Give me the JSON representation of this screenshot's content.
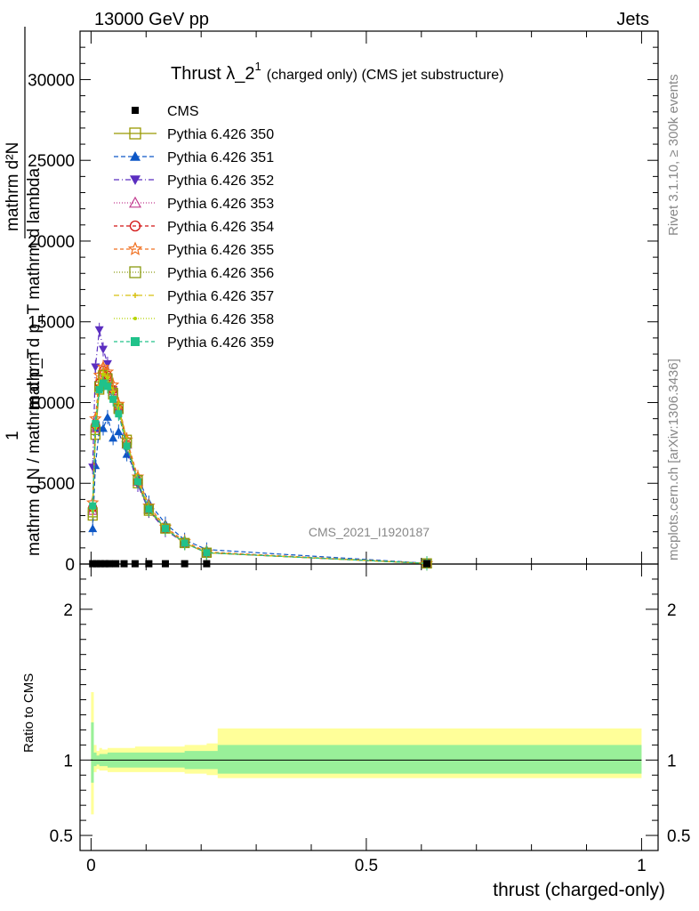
{
  "header": {
    "left": "13000 GeV pp",
    "right": "Jets"
  },
  "side_text": {
    "rivet": "Rivet 3.1.10, ≥ 300k events",
    "mcplots": "mcplots.cern.ch [arXiv:1306.3436]"
  },
  "watermark": "CMS_2021_I1920187",
  "chart_data": {
    "type": "line",
    "title_main": "Thrust λ_2",
    "title_sup": "1",
    "title_sub": "(charged only) (CMS jet substructure)",
    "ylabel_lines": [
      "mathrm d²N",
      "mathrm d p_T mathrm d lambda",
      "1",
      "mathrm d N / mathrm d p_T"
    ],
    "xlabel": "thrust (charged-only)",
    "ratio_ylabel": "Ratio to CMS",
    "xlim": [
      -0.02,
      1.03
    ],
    "ylim": [
      0,
      33000
    ],
    "x_ticks": [
      {
        "value": 0,
        "label": "0"
      },
      {
        "value": 0.5,
        "label": "0.5"
      },
      {
        "value": 1,
        "label": "1"
      }
    ],
    "y_ticks": [
      {
        "value": 0,
        "label": "0"
      },
      {
        "value": 5000,
        "label": "5000"
      },
      {
        "value": 10000,
        "label": "10000"
      },
      {
        "value": 15000,
        "label": "15000"
      },
      {
        "value": 20000,
        "label": "20000"
      },
      {
        "value": 25000,
        "label": "25000"
      },
      {
        "value": 30000,
        "label": "30000"
      }
    ],
    "ratio_ylim": [
      0.4,
      2.3
    ],
    "ratio_ticks": [
      {
        "value": 0.5,
        "label": "0.5"
      },
      {
        "value": 1,
        "label": "1"
      },
      {
        "value": 2,
        "label": "2"
      }
    ],
    "data": {
      "name": "CMS",
      "x": [
        0.003,
        0.01,
        0.017,
        0.025,
        0.033,
        0.045,
        0.06,
        0.08,
        0.105,
        0.135,
        0.17,
        0.21,
        0.61
      ],
      "y": [
        20,
        20,
        20,
        20,
        20,
        20,
        20,
        20,
        20,
        20,
        20,
        20,
        20
      ]
    },
    "x_points": [
      0.003,
      0.008,
      0.015,
      0.022,
      0.03,
      0.04,
      0.05,
      0.065,
      0.085,
      0.105,
      0.135,
      0.17,
      0.21,
      0.61
    ],
    "series": [
      {
        "name": "Pythia 6.426 350",
        "color": "#999900",
        "marker": "open-square",
        "dash": "",
        "values": [
          3000,
          8000,
          10800,
          11500,
          11400,
          10500,
          9700,
          7700,
          5000,
          3300,
          2200,
          1300,
          700,
          40
        ]
      },
      {
        "name": "Pythia 6.426 351",
        "color": "#0d57c6",
        "marker": "filled-triangle-up",
        "dash": "5,3",
        "values": [
          2200,
          6100,
          8400,
          8400,
          9100,
          7800,
          8200,
          6800,
          5400,
          3800,
          2500,
          1500,
          900,
          50
        ]
      },
      {
        "name": "Pythia 6.426 352",
        "color": "#5b2ec0",
        "marker": "filled-triangle-down",
        "dash": "6,3,1,3",
        "values": [
          6000,
          12200,
          14500,
          13300,
          12400,
          10800,
          9400,
          7200,
          4900,
          3300,
          2100,
          1300,
          700,
          40
        ]
      },
      {
        "name": "Pythia 6.426 353",
        "color": "#c23b8f",
        "marker": "open-triangle-up",
        "dash": "1,2",
        "values": [
          3300,
          8400,
          11000,
          11900,
          11600,
          10700,
          9600,
          7400,
          5100,
          3400,
          2200,
          1300,
          700,
          40
        ]
      },
      {
        "name": "Pythia 6.426 354",
        "color": "#d21414",
        "marker": "open-circle",
        "dash": "4,3",
        "values": [
          3500,
          8600,
          11200,
          12000,
          11700,
          10800,
          9600,
          7400,
          5100,
          3400,
          2200,
          1300,
          700,
          40
        ]
      },
      {
        "name": "Pythia 6.426 355",
        "color": "#f07020",
        "marker": "open-star",
        "dash": "4,3",
        "values": [
          3800,
          9000,
          11700,
          12200,
          11900,
          11100,
          9900,
          7700,
          5400,
          3600,
          2300,
          1400,
          750,
          40
        ]
      },
      {
        "name": "Pythia 6.426 356",
        "color": "#8a9a10",
        "marker": "open-square",
        "dash": "1,2",
        "values": [
          3200,
          8300,
          11000,
          11700,
          11500,
          10600,
          9600,
          7500,
          5200,
          3400,
          2200,
          1300,
          700,
          40
        ]
      },
      {
        "name": "Pythia 6.426 357",
        "color": "#d8c010",
        "marker": "small-cross",
        "dash": "6,3,1,3",
        "values": [
          3400,
          8500,
          11100,
          11800,
          11600,
          10700,
          9700,
          7500,
          5200,
          3500,
          2200,
          1300,
          700,
          40
        ]
      },
      {
        "name": "Pythia 6.426 358",
        "color": "#b5d400",
        "marker": "small-dot",
        "dash": "1,2",
        "values": [
          3300,
          8400,
          11000,
          11700,
          11500,
          10600,
          9600,
          7400,
          5100,
          3400,
          2200,
          1300,
          700,
          40
        ]
      },
      {
        "name": "Pythia 6.426 359",
        "color": "#20c28a",
        "marker": "filled-square",
        "dash": "4,3",
        "values": [
          3600,
          8700,
          10800,
          11200,
          11000,
          10200,
          9300,
          7300,
          5100,
          3400,
          2200,
          1300,
          700,
          40
        ]
      }
    ],
    "ratio_bands": {
      "x_edges": [
        0.0,
        0.005,
        0.01,
        0.015,
        0.02,
        0.03,
        0.05,
        0.08,
        0.12,
        0.17,
        0.21,
        0.23,
        1.0
      ],
      "inner_upper": [
        1.25,
        1.05,
        1.03,
        1.04,
        1.04,
        1.05,
        1.05,
        1.05,
        1.05,
        1.06,
        1.06,
        1.1
      ],
      "inner_lower": [
        0.85,
        0.96,
        0.97,
        0.96,
        0.96,
        0.95,
        0.95,
        0.95,
        0.95,
        0.94,
        0.94,
        0.91
      ],
      "outer_upper": [
        1.45,
        1.1,
        1.06,
        1.08,
        1.07,
        1.08,
        1.08,
        1.09,
        1.09,
        1.1,
        1.11,
        1.21
      ],
      "outer_lower": [
        0.64,
        0.92,
        0.94,
        0.93,
        0.93,
        0.92,
        0.92,
        0.92,
        0.92,
        0.91,
        0.9,
        0.88
      ],
      "inner_color": "#99f099",
      "outer_color": "#ffff99"
    }
  }
}
